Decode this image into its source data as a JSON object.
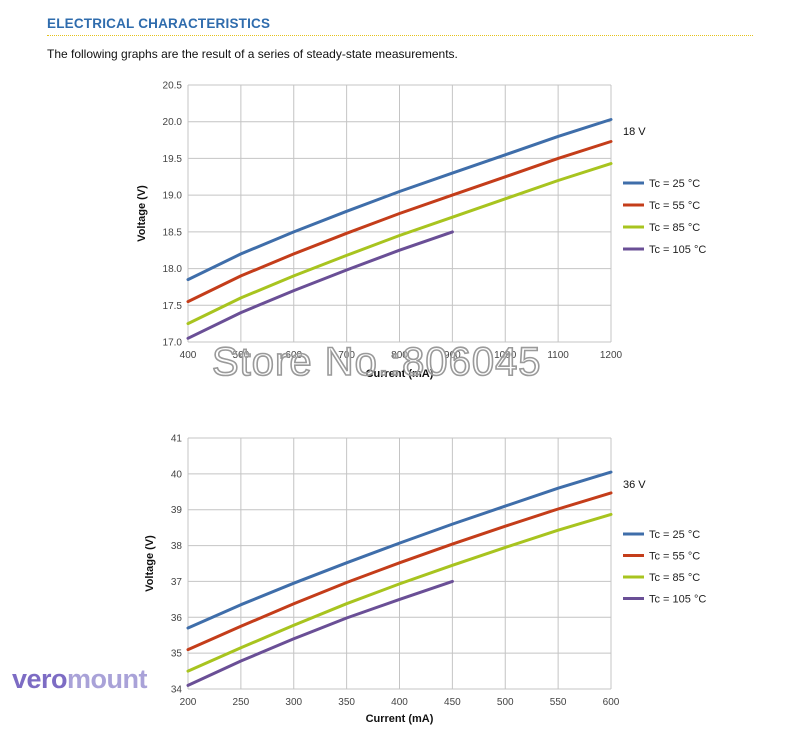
{
  "header": {
    "title": "ELECTRICAL CHARACTERISTICS",
    "intro": "The following graphs are the result of a series of steady-state measurements."
  },
  "watermark": "Store No.:806045",
  "brand": {
    "part1": "vero",
    "part2": "mount"
  },
  "colors": {
    "title": "#2f6cad",
    "rule": "#e4c21c",
    "grid": "#c4c4c4"
  },
  "chart_data": [
    {
      "type": "line",
      "annotation": "18 V",
      "xlabel": "Current (mA)",
      "ylabel": "Voltage (V)",
      "xlim": [
        400,
        1200
      ],
      "ylim": [
        17.0,
        20.5
      ],
      "xticks": [
        400,
        500,
        600,
        700,
        800,
        900,
        1000,
        1100,
        1200
      ],
      "yticks": [
        "17.0",
        "17.5",
        "18.0",
        "18.5",
        "19.0",
        "19.5",
        "20.0",
        "20.5"
      ],
      "grid": true,
      "legend": "right",
      "series": [
        {
          "name": "Tc = 25 °C",
          "color": "#3f6eaa",
          "x": [
            400,
            500,
            600,
            700,
            800,
            900,
            1000,
            1100,
            1200
          ],
          "y": [
            17.85,
            18.2,
            18.5,
            18.78,
            19.05,
            19.3,
            19.55,
            19.8,
            20.03
          ]
        },
        {
          "name": "Tc = 55 °C",
          "color": "#c43d1a",
          "x": [
            400,
            500,
            600,
            700,
            800,
            900,
            1000,
            1100,
            1200
          ],
          "y": [
            17.55,
            17.9,
            18.2,
            18.48,
            18.75,
            19.0,
            19.25,
            19.5,
            19.73
          ]
        },
        {
          "name": "Tc = 85 °C",
          "color": "#a8c41f",
          "x": [
            400,
            500,
            600,
            700,
            800,
            900,
            1000,
            1100,
            1200
          ],
          "y": [
            17.25,
            17.6,
            17.9,
            18.18,
            18.45,
            18.7,
            18.95,
            19.2,
            19.43
          ]
        },
        {
          "name": "Tc = 105 °C",
          "color": "#6a4f96",
          "x": [
            400,
            500,
            600,
            700,
            800,
            900
          ],
          "y": [
            17.05,
            17.4,
            17.7,
            17.98,
            18.25,
            18.5
          ]
        }
      ]
    },
    {
      "type": "line",
      "annotation": "36 V",
      "xlabel": "Current (mA)",
      "ylabel": "Voltage (V)",
      "xlim": [
        200,
        600
      ],
      "ylim": [
        34,
        41
      ],
      "xticks": [
        200,
        250,
        300,
        350,
        400,
        450,
        500,
        550,
        600
      ],
      "yticks": [
        "34",
        "35",
        "36",
        "37",
        "38",
        "39",
        "40",
        "41"
      ],
      "grid": true,
      "legend": "right",
      "series": [
        {
          "name": "Tc = 25 °C",
          "color": "#3f6eaa",
          "x": [
            200,
            250,
            300,
            350,
            400,
            450,
            500,
            550,
            600
          ],
          "y": [
            35.7,
            36.35,
            36.95,
            37.52,
            38.07,
            38.6,
            39.1,
            39.6,
            40.05
          ]
        },
        {
          "name": "Tc = 55 °C",
          "color": "#c43d1a",
          "x": [
            200,
            250,
            300,
            350,
            400,
            450,
            500,
            550,
            600
          ],
          "y": [
            35.1,
            35.75,
            36.38,
            36.97,
            37.52,
            38.04,
            38.54,
            39.02,
            39.47
          ]
        },
        {
          "name": "Tc = 85 °C",
          "color": "#a8c41f",
          "x": [
            200,
            250,
            300,
            350,
            400,
            450,
            500,
            550,
            600
          ],
          "y": [
            34.5,
            35.15,
            35.78,
            36.38,
            36.93,
            37.45,
            37.95,
            38.43,
            38.87
          ]
        },
        {
          "name": "Tc = 105 °C",
          "color": "#6a4f96",
          "x": [
            200,
            250,
            300,
            350,
            400,
            450
          ],
          "y": [
            34.1,
            34.78,
            35.4,
            35.98,
            36.5,
            37.0
          ]
        }
      ]
    }
  ]
}
